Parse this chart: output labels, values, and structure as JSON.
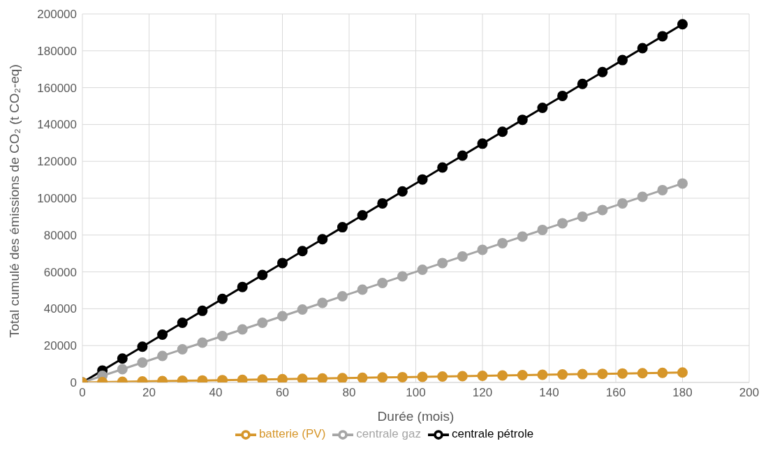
{
  "chart_data": {
    "type": "line",
    "xlabel": "Durée (mois)",
    "ylabel": "Total cumulé des émissions de CO₂ (t CO₂-eq)",
    "x": [
      0,
      6,
      12,
      18,
      24,
      30,
      36,
      42,
      48,
      54,
      60,
      66,
      72,
      78,
      84,
      90,
      96,
      102,
      108,
      114,
      120,
      126,
      132,
      138,
      144,
      150,
      156,
      162,
      168,
      174,
      180
    ],
    "series": [
      {
        "name": "centrale pétrole",
        "color": "#000000",
        "values": [
          0,
          6480,
          12960,
          19440,
          25920,
          32400,
          38880,
          45360,
          51840,
          58320,
          64800,
          71280,
          77760,
          84240,
          90720,
          97200,
          103680,
          110160,
          116640,
          123120,
          129600,
          136080,
          142560,
          149040,
          155520,
          162000,
          168480,
          174960,
          181440,
          187920,
          194400
        ]
      },
      {
        "name": "centrale gaz",
        "color": "#a5a5a5",
        "values": [
          0,
          3600,
          7200,
          10800,
          14400,
          18000,
          21600,
          25200,
          28800,
          32400,
          36000,
          39600,
          43200,
          46800,
          50400,
          54000,
          57600,
          61200,
          64800,
          68400,
          72000,
          75600,
          79200,
          82800,
          86400,
          90000,
          93600,
          97200,
          100800,
          104400,
          108000
        ]
      },
      {
        "name": "batterie (PV)",
        "color": "#d6962a",
        "values": [
          0,
          180,
          360,
          540,
          720,
          900,
          1080,
          1260,
          1440,
          1620,
          1800,
          1980,
          2160,
          2340,
          2520,
          2700,
          2880,
          3060,
          3240,
          3420,
          3600,
          3780,
          3960,
          4140,
          4320,
          4500,
          4680,
          4860,
          5040,
          5220,
          5400
        ]
      }
    ],
    "xlim": [
      0,
      200
    ],
    "xticks": [
      0,
      20,
      40,
      60,
      80,
      100,
      120,
      140,
      160,
      180,
      200
    ],
    "ylim": [
      0,
      200000
    ],
    "yticks": [
      0,
      20000,
      40000,
      60000,
      80000,
      100000,
      120000,
      140000,
      160000,
      180000,
      200000
    ],
    "grid": true,
    "legend": "bottom",
    "marker": "circle",
    "line_style": "solid"
  }
}
